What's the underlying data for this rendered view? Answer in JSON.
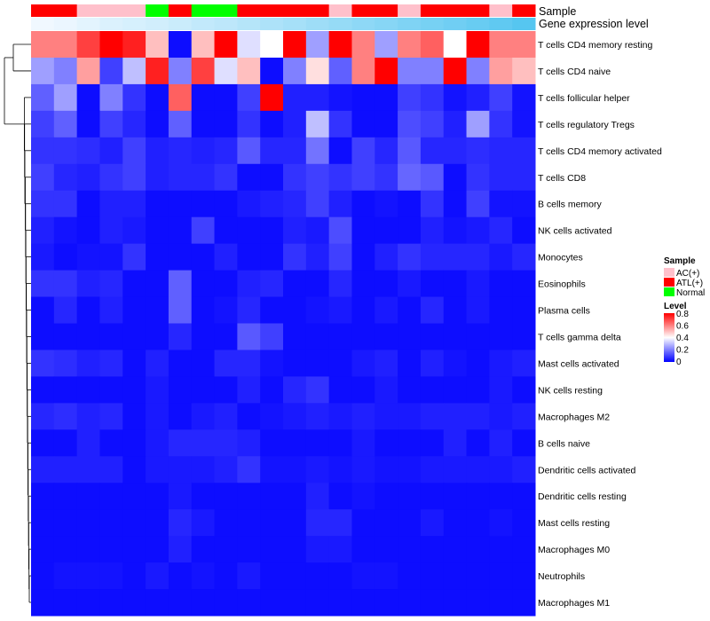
{
  "chart_data": {
    "type": "heatmap",
    "annotation_tracks": [
      "Sample",
      "Gene expression level"
    ],
    "samples": [
      "ATL(+)",
      "ATL(+)",
      "AC(+)",
      "AC(+)",
      "AC(+)",
      "Normal",
      "ATL(+)",
      "Normal",
      "Normal",
      "ATL(+)",
      "ATL(+)",
      "ATL(+)",
      "ATL(+)",
      "AC(+)",
      "ATL(+)",
      "ATL(+)",
      "AC(+)",
      "ATL(+)",
      "ATL(+)",
      "ATL(+)",
      "AC(+)",
      "ATL(+)"
    ],
    "gene_expression_level": [
      0.1,
      0.12,
      0.15,
      0.18,
      0.2,
      0.22,
      0.25,
      0.28,
      0.3,
      0.33,
      0.36,
      0.39,
      0.42,
      0.45,
      0.48,
      0.51,
      0.54,
      0.57,
      0.6,
      0.63,
      0.66,
      0.7
    ],
    "rows": [
      "T cells CD4 memory resting",
      "T cells CD4 naive",
      "T cells follicular helper",
      "T cells regulatory  Tregs",
      "T cells CD4 memory activated",
      "T cells CD8",
      "B cells memory",
      "NK cells activated",
      "Monocytes",
      "Eosinophils",
      "Plasma cells",
      "T cells gamma delta",
      "Mast cells activated",
      "NK cells resting",
      "Macrophages M2",
      "B cells naive",
      "Dendritic cells activated",
      "Dendritic cells resting",
      "Mast cells resting",
      "Macrophages M0",
      "Neutrophils",
      "Macrophages M1"
    ],
    "values": [
      [
        0.6,
        0.6,
        0.7,
        0.8,
        0.75,
        0.5,
        0.02,
        0.5,
        0.8,
        0.35,
        0.4,
        0.8,
        0.25,
        0.8,
        0.6,
        0.25,
        0.6,
        0.65,
        0.4,
        0.8,
        0.6,
        0.6
      ],
      [
        0.25,
        0.2,
        0.55,
        0.1,
        0.3,
        0.75,
        0.2,
        0.7,
        0.35,
        0.5,
        0.02,
        0.2,
        0.45,
        0.15,
        0.6,
        0.8,
        0.2,
        0.2,
        0.8,
        0.2,
        0.55,
        0.5
      ],
      [
        0.15,
        0.25,
        0.02,
        0.2,
        0.08,
        0.02,
        0.65,
        0.02,
        0.02,
        0.1,
        0.8,
        0.05,
        0.05,
        0.03,
        0.02,
        0.02,
        0.1,
        0.08,
        0.03,
        0.05,
        0.1,
        0.03
      ],
      [
        0.1,
        0.15,
        0.02,
        0.1,
        0.06,
        0.02,
        0.15,
        0.02,
        0.02,
        0.08,
        0.02,
        0.05,
        0.3,
        0.08,
        0.02,
        0.02,
        0.12,
        0.1,
        0.05,
        0.25,
        0.08,
        0.03
      ],
      [
        0.08,
        0.08,
        0.07,
        0.05,
        0.1,
        0.05,
        0.06,
        0.05,
        0.06,
        0.14,
        0.06,
        0.06,
        0.18,
        0.02,
        0.1,
        0.06,
        0.14,
        0.06,
        0.06,
        0.07,
        0.06,
        0.06
      ],
      [
        0.1,
        0.06,
        0.05,
        0.08,
        0.1,
        0.05,
        0.06,
        0.06,
        0.08,
        0.02,
        0.02,
        0.08,
        0.1,
        0.08,
        0.1,
        0.08,
        0.16,
        0.14,
        0.02,
        0.08,
        0.06,
        0.06
      ],
      [
        0.08,
        0.08,
        0.02,
        0.05,
        0.05,
        0.02,
        0.02,
        0.02,
        0.02,
        0.04,
        0.05,
        0.06,
        0.1,
        0.05,
        0.02,
        0.03,
        0.02,
        0.08,
        0.02,
        0.1,
        0.03,
        0.03
      ],
      [
        0.05,
        0.03,
        0.02,
        0.05,
        0.04,
        0.02,
        0.02,
        0.1,
        0.02,
        0.02,
        0.02,
        0.05,
        0.04,
        0.12,
        0.02,
        0.02,
        0.02,
        0.05,
        0.03,
        0.04,
        0.06,
        0.02
      ],
      [
        0.04,
        0.02,
        0.03,
        0.03,
        0.08,
        0.02,
        0.02,
        0.02,
        0.05,
        0.02,
        0.02,
        0.08,
        0.05,
        0.1,
        0.02,
        0.05,
        0.08,
        0.06,
        0.06,
        0.06,
        0.04,
        0.06
      ],
      [
        0.08,
        0.08,
        0.05,
        0.06,
        0.02,
        0.02,
        0.15,
        0.02,
        0.02,
        0.05,
        0.06,
        0.02,
        0.02,
        0.06,
        0.02,
        0.02,
        0.04,
        0.02,
        0.02,
        0.04,
        0.02,
        0.02
      ],
      [
        0.02,
        0.06,
        0.02,
        0.05,
        0.02,
        0.02,
        0.15,
        0.02,
        0.03,
        0.06,
        0.02,
        0.02,
        0.03,
        0.04,
        0.02,
        0.04,
        0.02,
        0.06,
        0.02,
        0.04,
        0.02,
        0.02
      ],
      [
        0.02,
        0.02,
        0.02,
        0.02,
        0.02,
        0.02,
        0.06,
        0.02,
        0.02,
        0.14,
        0.1,
        0.02,
        0.02,
        0.02,
        0.02,
        0.02,
        0.02,
        0.02,
        0.02,
        0.02,
        0.02,
        0.02
      ],
      [
        0.08,
        0.07,
        0.05,
        0.06,
        0.02,
        0.05,
        0.02,
        0.02,
        0.06,
        0.06,
        0.03,
        0.02,
        0.02,
        0.02,
        0.04,
        0.05,
        0.02,
        0.05,
        0.03,
        0.02,
        0.04,
        0.05
      ],
      [
        0.02,
        0.02,
        0.02,
        0.02,
        0.02,
        0.04,
        0.02,
        0.02,
        0.02,
        0.05,
        0.02,
        0.06,
        0.08,
        0.02,
        0.02,
        0.04,
        0.02,
        0.02,
        0.02,
        0.02,
        0.04,
        0.02
      ],
      [
        0.06,
        0.07,
        0.05,
        0.06,
        0.02,
        0.04,
        0.02,
        0.04,
        0.05,
        0.02,
        0.03,
        0.04,
        0.05,
        0.04,
        0.05,
        0.04,
        0.04,
        0.05,
        0.05,
        0.05,
        0.04,
        0.05
      ],
      [
        0.02,
        0.02,
        0.05,
        0.02,
        0.02,
        0.04,
        0.06,
        0.06,
        0.06,
        0.05,
        0.02,
        0.02,
        0.02,
        0.02,
        0.04,
        0.02,
        0.02,
        0.02,
        0.05,
        0.02,
        0.05,
        0.02
      ],
      [
        0.05,
        0.05,
        0.05,
        0.05,
        0.02,
        0.04,
        0.04,
        0.04,
        0.05,
        0.08,
        0.03,
        0.03,
        0.04,
        0.03,
        0.04,
        0.03,
        0.03,
        0.04,
        0.04,
        0.04,
        0.04,
        0.05
      ],
      [
        0.02,
        0.02,
        0.02,
        0.02,
        0.02,
        0.02,
        0.04,
        0.02,
        0.02,
        0.02,
        0.02,
        0.02,
        0.05,
        0.02,
        0.03,
        0.02,
        0.02,
        0.02,
        0.02,
        0.02,
        0.02,
        0.02
      ],
      [
        0.02,
        0.02,
        0.02,
        0.02,
        0.02,
        0.02,
        0.06,
        0.04,
        0.02,
        0.02,
        0.02,
        0.02,
        0.06,
        0.06,
        0.02,
        0.02,
        0.02,
        0.04,
        0.02,
        0.02,
        0.03,
        0.02
      ],
      [
        0.02,
        0.02,
        0.02,
        0.02,
        0.02,
        0.02,
        0.05,
        0.02,
        0.02,
        0.02,
        0.02,
        0.02,
        0.04,
        0.04,
        0.02,
        0.02,
        0.02,
        0.02,
        0.02,
        0.02,
        0.02,
        0.02
      ],
      [
        0.02,
        0.03,
        0.03,
        0.03,
        0.02,
        0.04,
        0.02,
        0.03,
        0.02,
        0.04,
        0.02,
        0.02,
        0.02,
        0.02,
        0.03,
        0.03,
        0.02,
        0.02,
        0.02,
        0.02,
        0.02,
        0.02
      ],
      [
        0.02,
        0.02,
        0.02,
        0.02,
        0.02,
        0.02,
        0.02,
        0.02,
        0.02,
        0.02,
        0.02,
        0.02,
        0.02,
        0.02,
        0.02,
        0.02,
        0.02,
        0.02,
        0.02,
        0.02,
        0.02,
        0.02
      ]
    ],
    "color_scale": {
      "low": "#0000ff",
      "mid": "#ffffff",
      "high": "#ff0000",
      "min": 0,
      "mid_value": 0.4,
      "max": 0.8
    },
    "legend": {
      "sample_title": "Sample",
      "sample_items": [
        {
          "label": "AC(+)",
          "color": "#ffc0cb"
        },
        {
          "label": "ATL(+)",
          "color": "#ff0000"
        },
        {
          "label": "Normal",
          "color": "#00ff00"
        }
      ],
      "level_title": "Level",
      "level_ticks": [
        "0.8",
        "0.6",
        "0.4",
        "0.2",
        "0"
      ],
      "placement": "right"
    },
    "level_track_colors": {
      "low": "#f0f8ff",
      "high": "#56c6f0"
    }
  }
}
